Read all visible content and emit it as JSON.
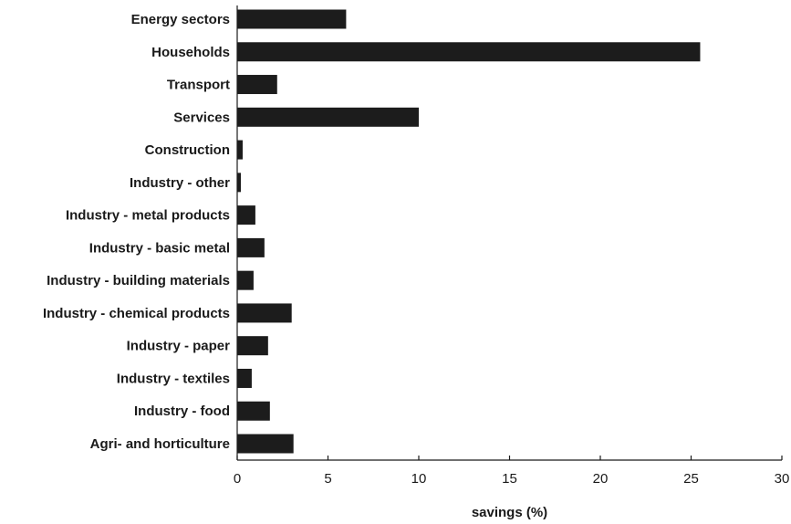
{
  "chart_data": {
    "type": "bar",
    "orientation": "horizontal",
    "categories": [
      "Energy sectors",
      "Households",
      "Transport",
      "Services",
      "Construction",
      "Industry - other",
      "Industry - metal products",
      "Industry - basic metal",
      "Industry - building materials",
      "Industry - chemical products",
      "Industry - paper",
      "Industry - textiles",
      "Industry - food",
      "Agri- and horticulture"
    ],
    "values": [
      6.0,
      25.5,
      2.2,
      10.0,
      0.3,
      0.2,
      1.0,
      1.5,
      0.9,
      3.0,
      1.7,
      0.8,
      1.8,
      3.1
    ],
    "title": "",
    "xlabel": "savings (%)",
    "ylabel": "",
    "xlim": [
      0,
      30
    ],
    "xticks": [
      0,
      5,
      10,
      15,
      20,
      25,
      30
    ],
    "grid": false,
    "legend": "none",
    "bar_color": "#1c1c1c",
    "axis_color": "#1a1a1a"
  }
}
